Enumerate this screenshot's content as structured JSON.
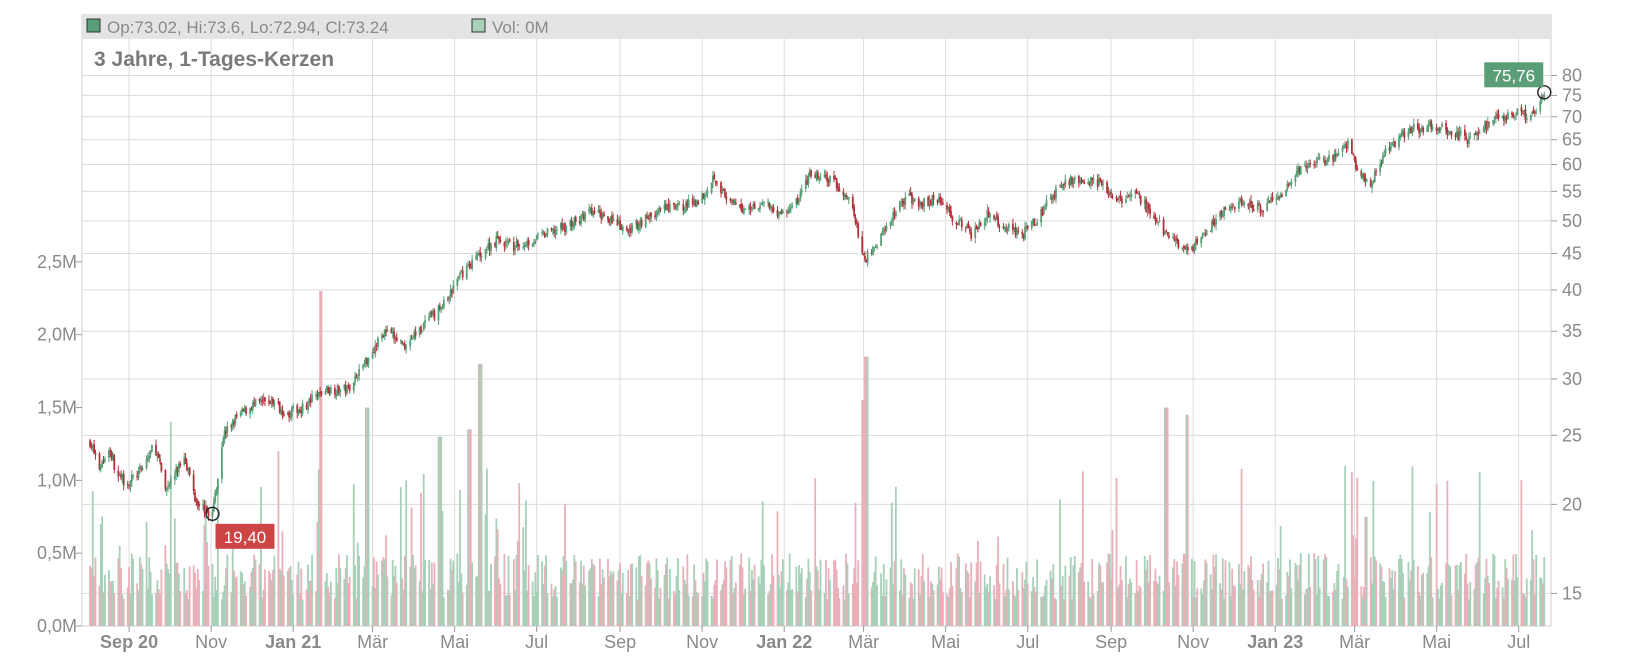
{
  "info_bar": {
    "ohlc_text": "Op:73.02, Hi:73.6, Lo:72.94, Cl:73.24",
    "vol_text": "Vol: 0M"
  },
  "chart_title": "3 Jahre, 1-Tages-Kerzen",
  "colors": {
    "up": "#5a9e78",
    "down": "#b0333a",
    "up_vol": "#a8d0b8",
    "down_vol": "#eab0ba",
    "grid": "#dcdcdc",
    "callout_high": "#5a9e78",
    "callout_low": "#cc4444"
  },
  "chart_data": {
    "type": "candlestick",
    "title": "3 Jahre, 1-Tages-Kerzen",
    "price_axis": {
      "scale": "log",
      "range": [
        13.5,
        90
      ],
      "ticks": [
        "15",
        "20",
        "25",
        "30",
        "35",
        "40",
        "45",
        "50",
        "55",
        "60",
        "65",
        "70",
        "75",
        "80"
      ]
    },
    "volume_axis": {
      "range": [
        0,
        3000000
      ],
      "ticks": [
        "0,0M",
        "0,5M",
        "1,0M",
        "1,5M",
        "2,0M",
        "2,5M"
      ]
    },
    "x_ticks": [
      {
        "label": "Sep 20",
        "bold": true
      },
      {
        "label": "Nov",
        "bold": false
      },
      {
        "label": "Jan 21",
        "bold": true
      },
      {
        "label": "Mär",
        "bold": false
      },
      {
        "label": "Mai",
        "bold": false
      },
      {
        "label": "Jul",
        "bold": false
      },
      {
        "label": "Sep",
        "bold": false
      },
      {
        "label": "Nov",
        "bold": false
      },
      {
        "label": "Jan 22",
        "bold": true
      },
      {
        "label": "Mär",
        "bold": false
      },
      {
        "label": "Mai",
        "bold": false
      },
      {
        "label": "Jul",
        "bold": false
      },
      {
        "label": "Sep",
        "bold": false
      },
      {
        "label": "Nov",
        "bold": false
      },
      {
        "label": "Jan 23",
        "bold": true
      },
      {
        "label": "Mär",
        "bold": false
      },
      {
        "label": "Mai",
        "bold": false
      },
      {
        "label": "Jul",
        "bold": false
      }
    ],
    "price_path": [
      [
        "2020-08-03",
        24.5
      ],
      [
        "2020-08-10",
        22.5
      ],
      [
        "2020-08-17",
        24.0
      ],
      [
        "2020-08-24",
        21.8
      ],
      [
        "2020-09-01",
        21.5
      ],
      [
        "2020-09-10",
        22.3
      ],
      [
        "2020-09-20",
        24.3
      ],
      [
        "2020-09-28",
        21.0
      ],
      [
        "2020-10-05",
        22.0
      ],
      [
        "2020-10-12",
        23.5
      ],
      [
        "2020-10-20",
        20.5
      ],
      [
        "2020-10-28",
        19.6
      ],
      [
        "2020-11-02",
        19.4
      ],
      [
        "2020-11-10",
        25.0
      ],
      [
        "2020-11-20",
        26.5
      ],
      [
        "2020-12-01",
        27.5
      ],
      [
        "2020-12-15",
        28.0
      ],
      [
        "2020-12-28",
        26.8
      ],
      [
        "2021-01-10",
        27.5
      ],
      [
        "2021-01-25",
        29.0
      ],
      [
        "2021-02-10",
        29.0
      ],
      [
        "2021-02-25",
        32.0
      ],
      [
        "2021-03-10",
        35.0
      ],
      [
        "2021-03-25",
        33.5
      ],
      [
        "2021-04-10",
        36.0
      ],
      [
        "2021-04-25",
        38.5
      ],
      [
        "2021-05-05",
        42.0
      ],
      [
        "2021-05-20",
        45.0
      ],
      [
        "2021-06-01",
        47.0
      ],
      [
        "2021-06-15",
        46.0
      ],
      [
        "2021-06-28",
        47.0
      ],
      [
        "2021-07-15",
        48.5
      ],
      [
        "2021-08-01",
        50.0
      ],
      [
        "2021-08-10",
        51.5
      ],
      [
        "2021-08-25",
        50.5
      ],
      [
        "2021-09-05",
        48.0
      ],
      [
        "2021-09-20",
        50.5
      ],
      [
        "2021-10-05",
        52.0
      ],
      [
        "2021-10-20",
        52.5
      ],
      [
        "2021-11-01",
        54.0
      ],
      [
        "2021-11-10",
        58.0
      ],
      [
        "2021-11-20",
        53.0
      ],
      [
        "2021-12-01",
        52.0
      ],
      [
        "2021-12-15",
        53.0
      ],
      [
        "2022-01-01",
        51.0
      ],
      [
        "2022-01-10",
        53.0
      ],
      [
        "2022-01-20",
        58.0
      ],
      [
        "2022-02-05",
        57.0
      ],
      [
        "2022-02-20",
        53.0
      ],
      [
        "2022-03-01",
        44.0
      ],
      [
        "2022-03-10",
        46.0
      ],
      [
        "2022-03-20",
        50.0
      ],
      [
        "2022-04-01",
        54.0
      ],
      [
        "2022-04-15",
        53.0
      ],
      [
        "2022-04-25",
        54.0
      ],
      [
        "2022-05-05",
        51.0
      ],
      [
        "2022-05-20",
        48.0
      ],
      [
        "2022-06-01",
        51.0
      ],
      [
        "2022-06-15",
        49.0
      ],
      [
        "2022-06-28",
        48.0
      ],
      [
        "2022-07-10",
        51.0
      ],
      [
        "2022-07-25",
        56.0
      ],
      [
        "2022-08-05",
        57.5
      ],
      [
        "2022-08-20",
        57.0
      ],
      [
        "2022-09-05",
        53.5
      ],
      [
        "2022-09-20",
        54.5
      ],
      [
        "2022-10-01",
        51.0
      ],
      [
        "2022-10-15",
        47.0
      ],
      [
        "2022-11-01",
        46.0
      ],
      [
        "2022-11-10",
        47.5
      ],
      [
        "2022-11-20",
        51.0
      ],
      [
        "2022-12-05",
        53.0
      ],
      [
        "2022-12-20",
        52.0
      ],
      [
        "2023-01-05",
        54.0
      ],
      [
        "2023-01-15",
        58.0
      ],
      [
        "2023-01-28",
        60.0
      ],
      [
        "2023-02-10",
        61.0
      ],
      [
        "2023-02-25",
        64.0
      ],
      [
        "2023-03-05",
        58.0
      ],
      [
        "2023-03-12",
        56.0
      ],
      [
        "2023-03-25",
        63.0
      ],
      [
        "2023-04-10",
        67.0
      ],
      [
        "2023-04-25",
        68.0
      ],
      [
        "2023-05-10",
        67.0
      ],
      [
        "2023-05-25",
        65.0
      ],
      [
        "2023-06-05",
        68.0
      ],
      [
        "2023-06-20",
        70.0
      ],
      [
        "2023-07-01",
        71.0
      ],
      [
        "2023-07-10",
        70.0
      ],
      [
        "2023-07-20",
        75.76
      ]
    ],
    "volume_spikes": [
      [
        "2020-10-03",
        1.4
      ],
      [
        "2020-12-20",
        1.2
      ],
      [
        "2021-01-22",
        2.3
      ],
      [
        "2021-02-25",
        1.5
      ],
      [
        "2021-04-20",
        1.3
      ],
      [
        "2021-05-12",
        1.35
      ],
      [
        "2021-05-20",
        1.8
      ],
      [
        "2022-03-03",
        1.85
      ],
      [
        "2022-03-01",
        1.55
      ],
      [
        "2022-10-12",
        1.5
      ],
      [
        "2022-10-28",
        1.45
      ],
      [
        "2023-03-10",
        0.75
      ]
    ],
    "high_marker": {
      "date": "2023-07-20",
      "value": 75.76,
      "label": "75,76"
    },
    "low_marker": {
      "date": "2020-11-02",
      "value": 19.4,
      "label": "19,40"
    }
  }
}
